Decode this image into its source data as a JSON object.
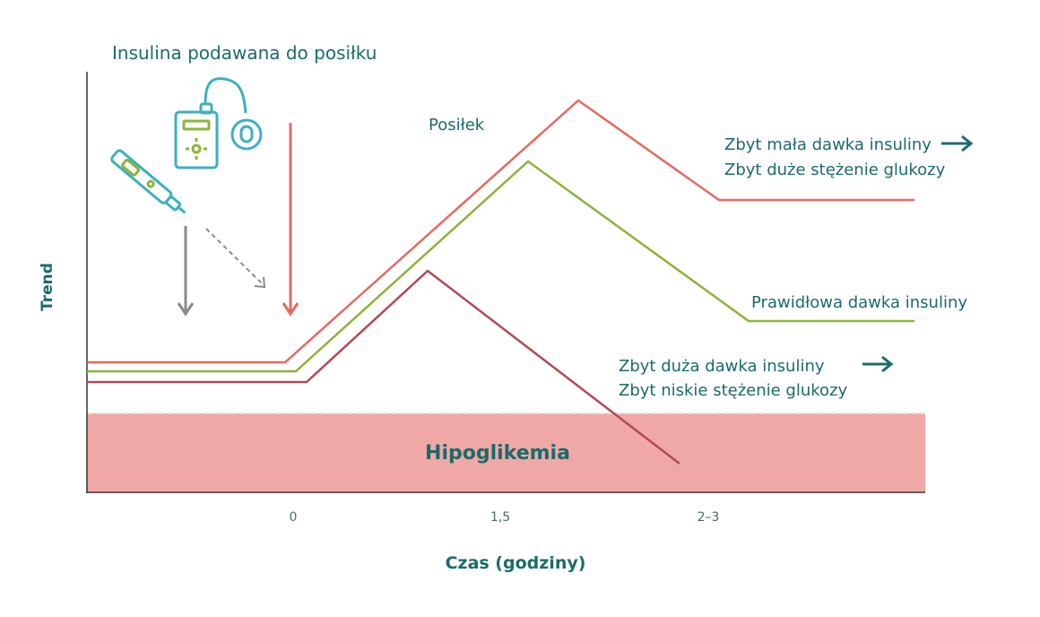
{
  "header": {
    "title": "Insulina podawana do posiłku"
  },
  "meal_label": "Posiłek",
  "axes": {
    "y_label": "Trend",
    "x_label": "Czas (godziny)",
    "x_ticks": [
      "0",
      "1,5",
      "2–3"
    ]
  },
  "hypo_zone": {
    "label": "Hipoglikemia",
    "color": "#f0a8a6"
  },
  "curves": {
    "too_low_dose": {
      "line1": "Zbyt mała dawka insuliny",
      "line2": "Zbyt duże stężenie glukozy",
      "color": "#e36a63"
    },
    "correct_dose": {
      "line1": "Prawidłowa dawka insuliny",
      "color": "#8db33a"
    },
    "too_high_dose": {
      "line1": "Zbyt duża dawka insuliny",
      "line2": "Zbyt niskie stężenie glukozy",
      "color": "#b04a52"
    }
  },
  "icons": [
    "insulin-pump-icon",
    "insulin-pen-icon",
    "right-arrow-icon"
  ]
}
